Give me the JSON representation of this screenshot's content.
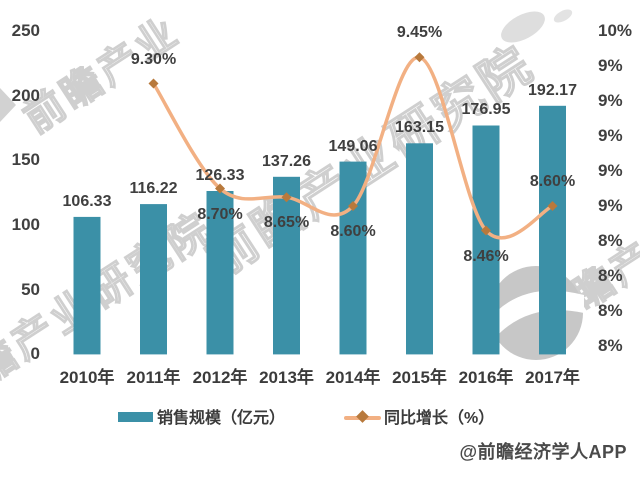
{
  "chart_data": {
    "type": "bar+line",
    "categories": [
      "2010年",
      "2011年",
      "2012年",
      "2013年",
      "2014年",
      "2015年",
      "2016年",
      "2017年"
    ],
    "series": [
      {
        "name": "销售规模（亿元）",
        "type": "bar",
        "axis": "left",
        "values": [
          106.33,
          116.22,
          126.33,
          137.26,
          149.06,
          163.15,
          176.95,
          192.17
        ],
        "labels": [
          "106.33",
          "116.22",
          "126.33",
          "137.26",
          "149.06",
          "163.15",
          "176.95",
          "192.17"
        ]
      },
      {
        "name": "同比增长（%）",
        "type": "line",
        "axis": "right",
        "start_category_index": 1,
        "values": [
          9.3,
          8.7,
          8.65,
          8.6,
          9.45,
          8.46,
          8.6
        ],
        "labels": [
          "9.30%",
          "8.70%",
          "8.65%",
          "8.60%",
          "9.45%",
          "8.46%",
          "8.60%"
        ],
        "label_positions": [
          "above",
          "below",
          "below",
          "below",
          "above",
          "below",
          "above"
        ]
      }
    ],
    "left_axis": {
      "tick_labels": [
        "250",
        "200",
        "150",
        "100",
        "50",
        "0"
      ],
      "min": 0,
      "max": 250
    },
    "right_axis": {
      "tick_labels": [
        "10%",
        "9%",
        "9%",
        "9%",
        "9%",
        "9%",
        "8%",
        "8%",
        "8%",
        "8%"
      ],
      "min": 7.8,
      "max": 9.6,
      "step": 0.2
    },
    "grid": "off",
    "legend_position": "bottom-center",
    "legend": {
      "items": [
        {
          "label": "销售规模（亿元）",
          "marker": "bar-swatch"
        },
        {
          "label": "同比增长（%）",
          "marker": "line-diamond"
        }
      ]
    }
  },
  "watermarks": {
    "brand_full": "前瞻产业研究院",
    "brand_short": "前瞻产业",
    "logo_icon": "qianzhan-bird-logo"
  },
  "attribution": "@前瞻经济学人APP",
  "colors": {
    "bar": "#3B90A7",
    "line": "#F2B083",
    "marker": "#B8793C",
    "text": "#3F3F3F",
    "watermark_gray": "#C9C9C9",
    "attribution_text": "#4A4A4A"
  }
}
